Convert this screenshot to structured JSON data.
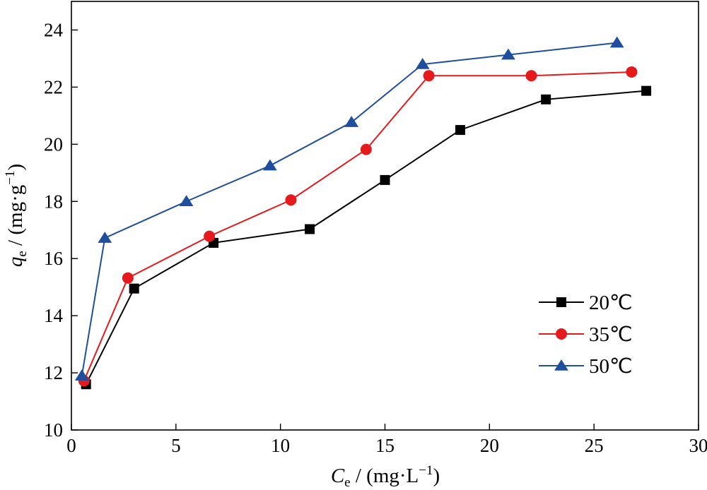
{
  "chart_data": {
    "type": "line",
    "title": "",
    "xlabel": {
      "symbol": "C",
      "subscript": "e",
      "unit": " / (mg·L",
      "exp": "−1",
      "close": ")"
    },
    "ylabel": {
      "symbol": "q",
      "subscript": "e",
      "unit": " / (mg·g",
      "exp": "−1",
      "close": ")"
    },
    "xlim": [
      0,
      30
    ],
    "ylim": [
      10,
      25
    ],
    "xticks": [
      0,
      5,
      10,
      15,
      20,
      25,
      30
    ],
    "yticks": [
      10,
      12,
      14,
      16,
      18,
      20,
      22,
      24
    ],
    "grid": false,
    "legend_position": "bottom-right",
    "series": [
      {
        "name": "20℃",
        "color": "#000000",
        "marker": "square",
        "x": [
          0.7,
          3.0,
          6.8,
          11.4,
          15.0,
          18.6,
          22.7,
          27.5
        ],
        "y": [
          11.6,
          14.95,
          16.55,
          17.03,
          18.75,
          20.5,
          21.57,
          21.87
        ]
      },
      {
        "name": "35℃",
        "color": "#e41a1c",
        "marker": "circle",
        "x": [
          0.6,
          2.7,
          6.6,
          10.5,
          14.1,
          17.1,
          22.0,
          26.8
        ],
        "y": [
          11.72,
          15.32,
          16.78,
          18.05,
          19.82,
          22.4,
          22.4,
          22.53
        ]
      },
      {
        "name": "50℃",
        "color": "#1f4e9c",
        "marker": "triangle",
        "x": [
          0.5,
          1.6,
          5.5,
          9.5,
          13.4,
          16.8,
          20.9,
          26.1
        ],
        "y": [
          11.9,
          16.72,
          18.0,
          19.25,
          20.77,
          22.8,
          23.13,
          23.55
        ]
      }
    ]
  }
}
